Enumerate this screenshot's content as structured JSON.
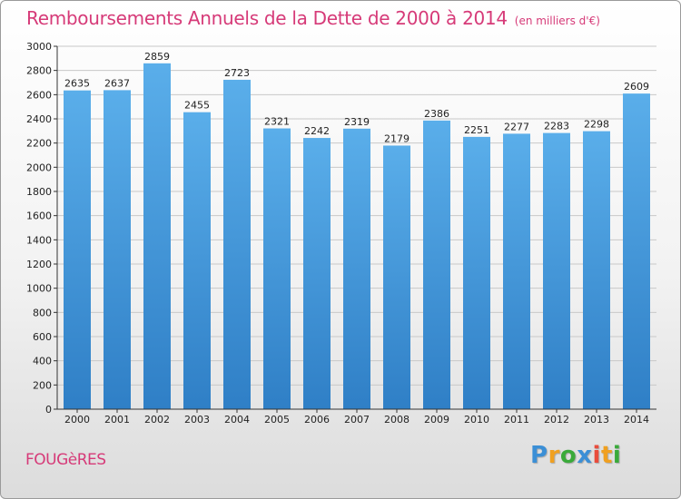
{
  "colors": {
    "title": "#d63a78",
    "bar_top": "#5aaeea",
    "bar_bottom": "#2f7fc6",
    "grid": "#c8c8c8",
    "axis": "#333333"
  },
  "location": "FOUGèRES",
  "logo": {
    "letters": [
      "P",
      "r",
      "o",
      "x",
      "i",
      "t",
      "i"
    ],
    "letter_colors": [
      "#3b8fd6",
      "#f0a020",
      "#3aaa3a",
      "#3b8fd6",
      "#e94c3c",
      "#f0a020",
      "#3aaa3a"
    ]
  },
  "chart_data": {
    "type": "bar",
    "title": "Remboursements Annuels de la Dette de 2000 à 2014",
    "subtitle": "(en milliers d'€)",
    "xlabel": "",
    "ylabel": "",
    "categories": [
      "2000",
      "2001",
      "2002",
      "2003",
      "2004",
      "2005",
      "2006",
      "2007",
      "2008",
      "2009",
      "2010",
      "2011",
      "2012",
      "2013",
      "2014"
    ],
    "values": [
      2635,
      2637,
      2859,
      2455,
      2723,
      2321,
      2242,
      2319,
      2179,
      2386,
      2251,
      2277,
      2283,
      2298,
      2609
    ],
    "ylim": [
      0,
      3000
    ],
    "yticks": [
      "0",
      "200",
      "400",
      "600",
      "800",
      "1000",
      "1200",
      "1400",
      "1600",
      "1800",
      "2000",
      "2200",
      "2400",
      "2600",
      "2800",
      "3000"
    ],
    "grid": true,
    "legend": "none"
  }
}
